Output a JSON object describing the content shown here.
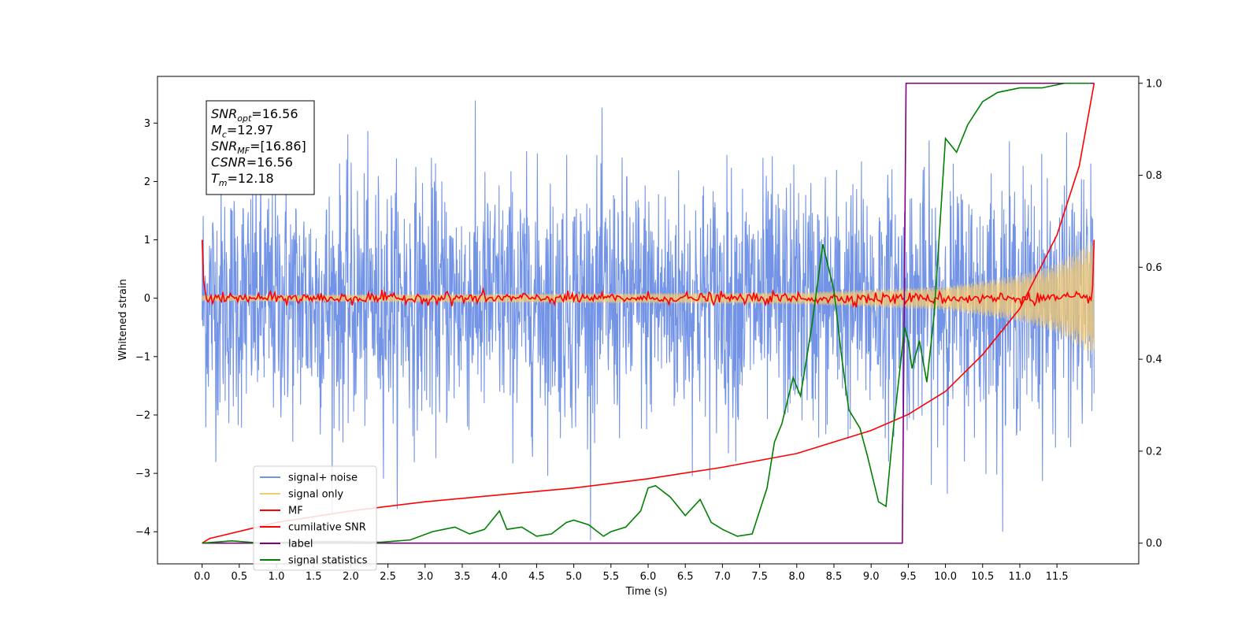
{
  "chart_data": {
    "type": "line",
    "xlabel": "Time (s)",
    "ylabel": "Whitened strain",
    "xlim": [
      -0.6,
      12.6
    ],
    "ylim": [
      -4.55,
      3.8
    ],
    "y2lim": [
      -0.045,
      1.015
    ],
    "x_ticks": [
      "0.0",
      "0.5",
      "1.0",
      "1.5",
      "2.0",
      "2.5",
      "3.0",
      "3.5",
      "4.0",
      "4.5",
      "5.0",
      "5.5",
      "6.0",
      "6.5",
      "7.0",
      "7.5",
      "8.0",
      "8.5",
      "9.0",
      "9.5",
      "10.0",
      "10.5",
      "11.0",
      "11.5"
    ],
    "y_ticks": [
      "3",
      "2",
      "1",
      "0",
      "−1",
      "−2",
      "−3",
      "−4"
    ],
    "y2_ticks": [
      "1.0",
      "0.8",
      "0.6",
      "0.4",
      "0.2",
      "0.0"
    ],
    "annotation": {
      "lines": [
        {
          "name": "SNR",
          "sub": "opt",
          "value": "=16.56"
        },
        {
          "name": "M",
          "sub": "c",
          "value": "=12.97"
        },
        {
          "name": "SNR",
          "sub": "MF",
          "value": "=[16.86]"
        },
        {
          "name": "CSNR",
          "sub": "",
          "value": "=16.56"
        },
        {
          "name": "T",
          "sub": "m",
          "value": "=12.18"
        }
      ]
    },
    "legend": {
      "placement": "lower-left",
      "entries": [
        {
          "label": "signal+ noise",
          "color": "#7293e6"
        },
        {
          "label": "signal only",
          "color": "#f5cb6f"
        },
        {
          "label": "MF",
          "color": "#ff0000"
        },
        {
          "label": "cumilative SNR",
          "color": "#ff0000"
        },
        {
          "label": "label",
          "color": "#800080"
        },
        {
          "label": "signal statistics",
          "color": "#008000"
        }
      ]
    },
    "series": [
      {
        "name": "signal+ noise",
        "axis": "left",
        "description_range": {
          "x": [
            0.0,
            12.0
          ],
          "envelope": [
            -4.1,
            3.4
          ]
        },
        "color": "#7293e6"
      },
      {
        "name": "signal only",
        "axis": "left",
        "envelope": [
          [
            0.0,
            0.05
          ],
          [
            8.0,
            0.1
          ],
          [
            10.0,
            0.2
          ],
          [
            11.0,
            0.4
          ],
          [
            11.5,
            0.6
          ],
          [
            12.0,
            1.0
          ]
        ],
        "color": "#f5cb6f"
      },
      {
        "name": "MF",
        "axis": "left",
        "x": [
          0.0,
          0.02,
          0.05,
          0.1,
          12.0
        ],
        "y": [
          1.0,
          0.3,
          0.0,
          0.0,
          0.0
        ],
        "color": "#ff0000"
      },
      {
        "name": "cumilative SNR",
        "axis": "right",
        "x": [
          0.0,
          0.1,
          1.0,
          2.0,
          3.0,
          4.0,
          5.0,
          6.0,
          7.0,
          8.0,
          9.0,
          9.5,
          10.0,
          10.5,
          11.0,
          11.5,
          11.8,
          12.0
        ],
        "y": [
          0.0,
          0.01,
          0.045,
          0.07,
          0.09,
          0.105,
          0.12,
          0.14,
          0.165,
          0.195,
          0.245,
          0.28,
          0.33,
          0.41,
          0.51,
          0.67,
          0.82,
          1.0
        ],
        "color": "#ff0000"
      },
      {
        "name": "label",
        "axis": "right",
        "x": [
          0.0,
          9.42,
          9.47,
          12.0
        ],
        "y": [
          0.0,
          0.0,
          1.0,
          1.0
        ],
        "color": "#800080"
      },
      {
        "name": "signal statistics",
        "axis": "right",
        "x": [
          0.0,
          0.4,
          0.8,
          1.2,
          1.6,
          2.0,
          2.4,
          2.8,
          3.1,
          3.4,
          3.6,
          3.8,
          4.0,
          4.1,
          4.3,
          4.5,
          4.7,
          4.9,
          5.0,
          5.2,
          5.4,
          5.5,
          5.7,
          5.9,
          6.0,
          6.1,
          6.3,
          6.5,
          6.7,
          6.85,
          7.0,
          7.2,
          7.4,
          7.6,
          7.7,
          7.8,
          7.95,
          8.05,
          8.2,
          8.35,
          8.5,
          8.6,
          8.7,
          8.85,
          8.95,
          9.1,
          9.2,
          9.3,
          9.45,
          9.5,
          9.55,
          9.65,
          9.75,
          9.85,
          10.0,
          10.15,
          10.3,
          10.5,
          10.7,
          11.0,
          11.3,
          11.6,
          11.95
        ],
        "y": [
          0.0,
          0.005,
          0.0,
          0.002,
          0.003,
          0.003,
          0.002,
          0.007,
          0.025,
          0.035,
          0.02,
          0.03,
          0.07,
          0.03,
          0.035,
          0.015,
          0.02,
          0.045,
          0.05,
          0.04,
          0.015,
          0.025,
          0.035,
          0.07,
          0.12,
          0.125,
          0.1,
          0.06,
          0.095,
          0.045,
          0.03,
          0.015,
          0.02,
          0.12,
          0.22,
          0.26,
          0.36,
          0.32,
          0.47,
          0.65,
          0.55,
          0.41,
          0.29,
          0.25,
          0.19,
          0.09,
          0.08,
          0.25,
          0.47,
          0.44,
          0.38,
          0.44,
          0.35,
          0.5,
          0.88,
          0.85,
          0.91,
          0.96,
          0.98,
          0.99,
          0.99,
          1.0,
          1.0
        ],
        "color": "#008000"
      }
    ]
  }
}
